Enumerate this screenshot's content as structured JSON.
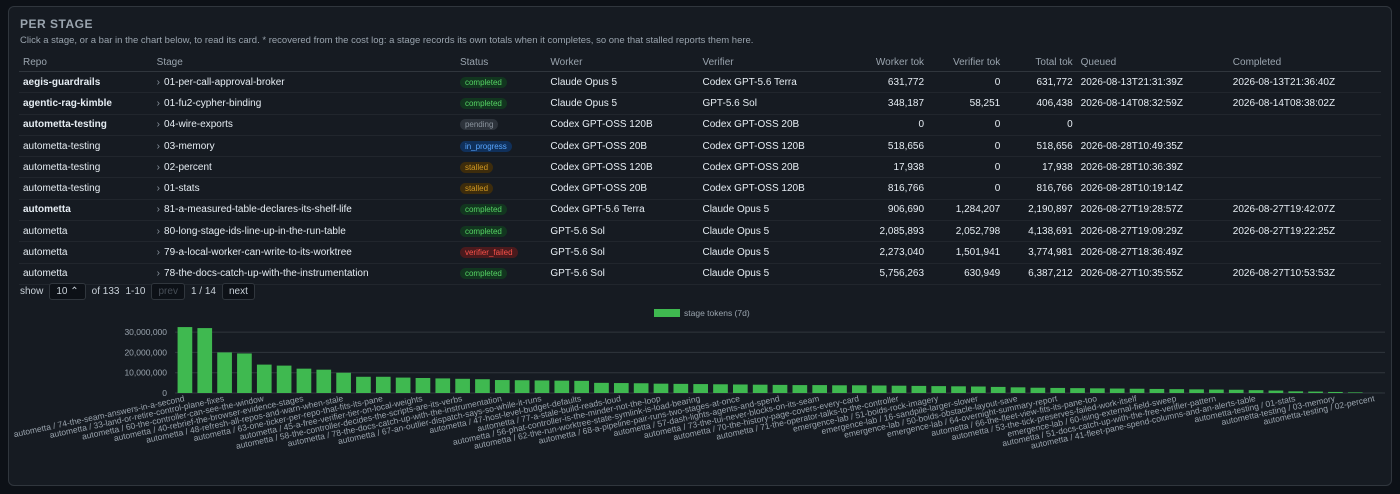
{
  "header": {
    "title": "PER STAGE",
    "description": "Click a stage, or a bar in the chart below, to read its card. * recovered from the cost log: a stage records its own totals when it completes, so one that stalled reports them here."
  },
  "table": {
    "columns": [
      "Repo",
      "Stage",
      "Status",
      "Worker",
      "Verifier",
      "Worker tok",
      "Verifier tok",
      "Total tok",
      "Queued",
      "Completed"
    ],
    "rows": [
      [
        "aegis-guardrails",
        "01-per-call-approval-broker",
        "completed",
        "Claude Opus 5",
        "Codex GPT-5.6 Terra",
        "631,772",
        "0",
        "631,772",
        "2026-08-13T21:31:39Z",
        "2026-08-13T21:36:40Z"
      ],
      [
        "agentic-rag-kimble",
        "01-fu2-cypher-binding",
        "completed",
        "Claude Opus 5",
        "GPT-5.6 Sol",
        "348,187",
        "58,251",
        "406,438",
        "2026-08-14T08:32:59Z",
        "2026-08-14T08:38:02Z"
      ],
      [
        "autometta-testing",
        "04-wire-exports",
        "pending",
        "Codex GPT-OSS 120B",
        "Codex GPT-OSS 20B",
        "0",
        "0",
        "0",
        null,
        null
      ],
      [
        "autometta-testing",
        "03-memory",
        "in_progress",
        "Codex GPT-OSS 20B",
        "Codex GPT-OSS 120B",
        "518,656",
        "0",
        "518,656",
        "2026-08-28T10:49:35Z",
        null
      ],
      [
        "autometta-testing",
        "02-percent",
        "stalled",
        "Codex GPT-OSS 120B",
        "Codex GPT-OSS 20B",
        "17,938",
        "0",
        "17,938",
        "2026-08-28T10:36:39Z",
        null
      ],
      [
        "autometta-testing",
        "01-stats",
        "stalled",
        "Codex GPT-OSS 20B",
        "Codex GPT-OSS 120B",
        "816,766",
        "0",
        "816,766",
        "2026-08-28T10:19:14Z",
        null
      ],
      [
        "autometta",
        "81-a-measured-table-declares-its-shelf-life",
        "completed",
        "Codex GPT-5.6 Terra",
        "Claude Opus 5",
        "906,690",
        "1,284,207",
        "2,190,897",
        "2026-08-27T19:28:57Z",
        "2026-08-27T19:42:07Z"
      ],
      [
        "autometta",
        "80-long-stage-ids-line-up-in-the-run-table",
        "completed",
        "GPT-5.6 Sol",
        "Claude Opus 5",
        "2,085,893",
        "2,052,798",
        "4,138,691",
        "2026-08-27T19:09:29Z",
        "2026-08-27T19:22:25Z"
      ],
      [
        "autometta",
        "79-a-local-worker-can-write-to-its-worktree",
        "verifier_failed",
        "GPT-5.6 Sol",
        "Claude Opus 5",
        "2,273,040",
        "1,501,941",
        "3,774,981",
        "2026-08-27T18:36:49Z",
        null
      ],
      [
        "autometta",
        "78-the-docs-catch-up-with-the-instrumentation",
        "completed",
        "GPT-5.6 Sol",
        "Claude Opus 5",
        "5,756,263",
        "630,949",
        "6,387,212",
        "2026-08-27T10:35:55Z",
        "2026-08-27T10:53:53Z"
      ]
    ]
  },
  "pagination": {
    "show_label": "show",
    "page_size": "10",
    "total": "of 133",
    "range": "1-10",
    "prev": "prev",
    "page": "1 / 14",
    "next": "next"
  },
  "chart_data": {
    "type": "bar",
    "categories": [
      "autometta / 74-the-seam-answers-in-a-second",
      null,
      "autometta / 33-land-or-retire-control-plane-fixes",
      null,
      "autometta / 60-the-controller-can-see-the-window",
      null,
      "autometta / 40-rebrief-the-browser-evidence-stages",
      null,
      "autometta / 48-refresh-all-repos-and-warn-when-stale",
      null,
      "autometta / 63-one-ticker-per-repo-that-fits-its-pane",
      null,
      "autometta / 45-a-free-verifier-tier-on-local-weights",
      null,
      "autometta / 58-the-controller-decides-the-scripts-are-its-verbs",
      null,
      "autometta / 78-the-docs-catch-up-with-the-instrumentation",
      null,
      "autometta / 67-an-outlier-dispatch-says-so-while-it-runs",
      null,
      "autometta / 47-host-level-budget-defaults",
      null,
      "autometta / 77-a-stale-build-reads-loud",
      null,
      "autometta / 56-phat-controller-is-the-minder-not-the-loop",
      null,
      "autometta / 62-the-run-worktree-state-symlink-is-load-bearing",
      null,
      "autometta / 68-a-pipeline-pair-runs-two-stages-at-once",
      null,
      "autometta / 57-dash-lights-agents-and-spend",
      null,
      "autometta / 73-the-tui-never-blocks-on-its-seam",
      null,
      "autometta / 70-the-history-page-covers-every-card",
      null,
      "autometta / 71-the-operator-talks-to-the-controller",
      null,
      "emergence-lab / 51-boids-rock-imagery",
      null,
      "emergence-lab / 16-sandpile-larger-slower",
      null,
      "emergence-lab / 50-boids-obstacle-layout-save",
      null,
      "emergence-lab / 64-overnight-summary-report",
      null,
      "autometta / 66-the-fleet-view-fits-its-pane-too",
      null,
      "autometta / 53-the-tick-preserves-failed-work-itself",
      null,
      "emergence-lab / 60-ising-external-field-sweep",
      null,
      "autometta / 51-docs-catch-up-with-the-free-verifier-pattern",
      null,
      "autometta / 41-fleet-pane-spend-columns-and-an-alerts-table",
      null,
      "autometta-testing / 01-stats",
      null,
      "autometta-testing / 03-memory",
      null,
      "autometta-testing / 02-percent"
    ],
    "series": [
      {
        "name": "stage tokens (7d)",
        "color": "#3fb950",
        "values": [
          32500000,
          32000000,
          20000000,
          19500000,
          14000000,
          13500000,
          12000000,
          11500000,
          10000000,
          8000000,
          8000000,
          7600000,
          7400000,
          7200000,
          7000000,
          6800000,
          6387212,
          6300000,
          6200000,
          6100000,
          6000000,
          5000000,
          4900000,
          4800000,
          4600000,
          4500000,
          4400000,
          4300000,
          4200000,
          4100000,
          4000000,
          3900000,
          3900000,
          3800000,
          3800000,
          3700000,
          3600000,
          3500000,
          3400000,
          3300000,
          3200000,
          3000000,
          2800000,
          2600000,
          2500000,
          2400000,
          2300000,
          2200000,
          2100000,
          2000000,
          1900000,
          1800000,
          1700000,
          1600000,
          1400000,
          1200000,
          816766,
          700000,
          518656,
          300000,
          17938
        ]
      }
    ],
    "ylim": [
      0,
      35000000
    ],
    "yticks": [
      0,
      {
        "value": 10000000,
        "label": "10,000,000"
      },
      {
        "value": 20000000,
        "label": "20,000,000"
      },
      {
        "value": 30000000,
        "label": "30,000,000"
      }
    ],
    "grid": true,
    "legend": "top"
  }
}
